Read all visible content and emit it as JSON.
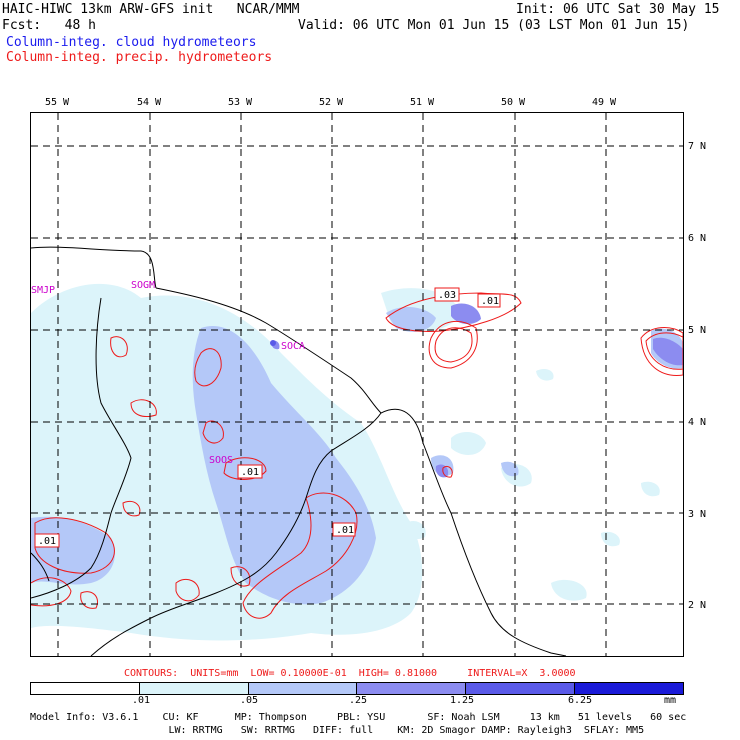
{
  "header": {
    "title": "HAIC-HIWC 13km ARW-GFS init   NCAR/MMM",
    "init": "Init: 06 UTC Sat 30 May 15",
    "fcst": "Fcst:   48 h",
    "valid": "Valid: 06 UTC Mon 01 Jun 15 (03 LST Mon 01 Jun 15)",
    "legend_cloud": "Column-integ. cloud hydrometeors",
    "legend_precip": "Column-integ. precip. hydrometeors",
    "legend_cloud_color": "#1a1aee",
    "legend_precip_color": "#ee1a1a"
  },
  "map": {
    "lon_labels": [
      "55 W",
      "54 W",
      "53 W",
      "52 W",
      "51 W",
      "50 W",
      "49 W"
    ],
    "lat_labels": [
      "7 N",
      "6 N",
      "5 N",
      "4 N",
      "3 N",
      "2 N"
    ],
    "stations": [
      "SMJP",
      "SOGM",
      "SOCA",
      "SOOS"
    ],
    "contour_labels": [
      ".03",
      ".01",
      ".01",
      ".01",
      ".01"
    ]
  },
  "contour_info": "CONTOURS:  UNITS=mm  LOW= 0.10000E-01  HIGH= 0.81000     INTERVAL=X  3.0000",
  "colorbar": {
    "labels": [
      ".01",
      ".05",
      ".25",
      "1.25",
      "6.25",
      "mm"
    ],
    "colors": [
      "#ffffff",
      "#dcf4fa",
      "#b4c8f8",
      "#8c8cf0",
      "#5a5ae8",
      "#1a1ad8"
    ]
  },
  "model_info": {
    "line1": "Model Info: V3.6.1    CU: KF      MP: Thompson     PBL: YSU       SF: Noah LSM     13 km   51 levels   60 sec",
    "line2": "                       LW: RRTMG   SW: RRTMG   DIFF: full    KM: 2D Smagor DAMP: Rayleigh3  SFLAY: MM5"
  }
}
